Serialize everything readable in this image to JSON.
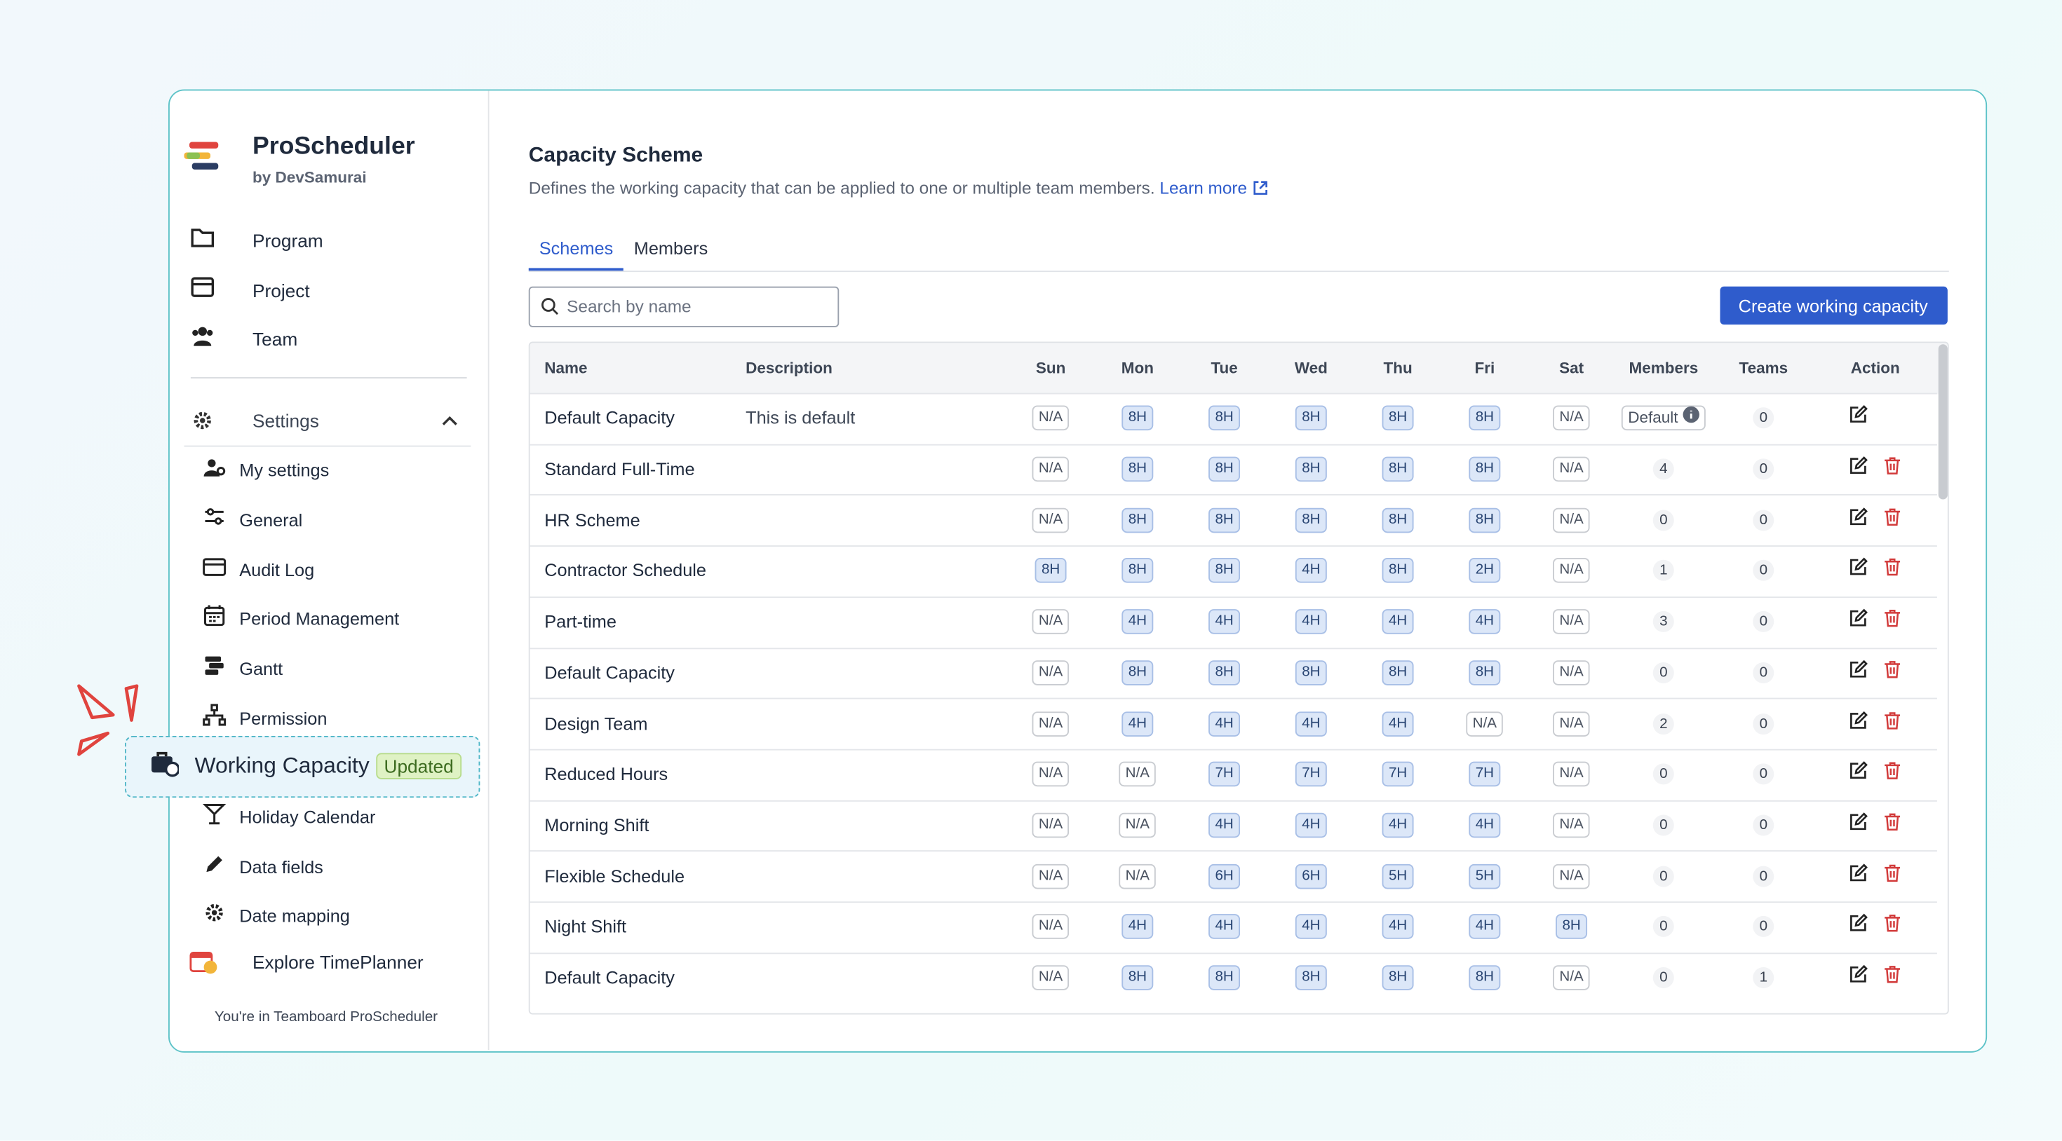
{
  "app": {
    "name": "ProScheduler",
    "by": "by DevSamurai"
  },
  "nav": [
    "Program",
    "Project",
    "Team"
  ],
  "settings": {
    "label": "Settings",
    "items": [
      "My settings",
      "General",
      "Audit Log",
      "Period Management",
      "Gantt",
      "Permission",
      "Working Capacity",
      "Holiday Calendar",
      "Data fields",
      "Date mapping"
    ],
    "badge": "Updated"
  },
  "explore": "Explore TimePlanner",
  "footer": "You're in Teamboard ProScheduler",
  "page": {
    "title": "Capacity Scheme",
    "description": "Defines the working capacity that can be applied to one or multiple team members.",
    "learn_more": "Learn more",
    "tabs": [
      "Schemes",
      "Members"
    ],
    "search_placeholder": "Search by name",
    "create_button": "Create working capacity"
  },
  "table": {
    "columns": [
      "Name",
      "Description",
      "Sun",
      "Mon",
      "Tue",
      "Wed",
      "Thu",
      "Fri",
      "Sat",
      "Members",
      "Teams",
      "Action"
    ],
    "rows": [
      [
        "Default Capacity",
        "This is default",
        "N/A",
        "8H",
        "8H",
        "8H",
        "8H",
        "8H",
        "N/A",
        "Default",
        0
      ],
      [
        "Standard Full-Time",
        null,
        "N/A",
        "8H",
        "8H",
        "8H",
        "8H",
        "8H",
        "N/A",
        4,
        0
      ],
      [
        "HR Scheme",
        null,
        "N/A",
        "8H",
        "8H",
        "8H",
        "8H",
        "8H",
        "N/A",
        0,
        0
      ],
      [
        "Contractor Schedule",
        null,
        "8H",
        "8H",
        "8H",
        "4H",
        "8H",
        "2H",
        "N/A",
        1,
        0
      ],
      [
        "Part-time",
        null,
        "N/A",
        "4H",
        "4H",
        "4H",
        "4H",
        "4H",
        "N/A",
        3,
        0
      ],
      [
        "Default Capacity",
        null,
        "N/A",
        "8H",
        "8H",
        "8H",
        "8H",
        "8H",
        "N/A",
        0,
        0
      ],
      [
        "Design Team",
        null,
        "N/A",
        "4H",
        "4H",
        "4H",
        "4H",
        "N/A",
        "N/A",
        2,
        0
      ],
      [
        "Reduced Hours",
        null,
        "N/A",
        "N/A",
        "7H",
        "7H",
        "7H",
        "7H",
        "N/A",
        0,
        0
      ],
      [
        "Morning Shift",
        null,
        "N/A",
        "N/A",
        "4H",
        "4H",
        "4H",
        "4H",
        "N/A",
        0,
        0
      ],
      [
        "Flexible Schedule",
        null,
        "N/A",
        "N/A",
        "6H",
        "6H",
        "5H",
        "5H",
        "N/A",
        0,
        0
      ],
      [
        "Night Shift",
        null,
        "N/A",
        "4H",
        "4H",
        "4H",
        "4H",
        "4H",
        "8H",
        0,
        0
      ],
      [
        "Default Capacity",
        null,
        "N/A",
        "8H",
        "8H",
        "8H",
        "8H",
        "8H",
        "N/A",
        0,
        1
      ]
    ]
  }
}
